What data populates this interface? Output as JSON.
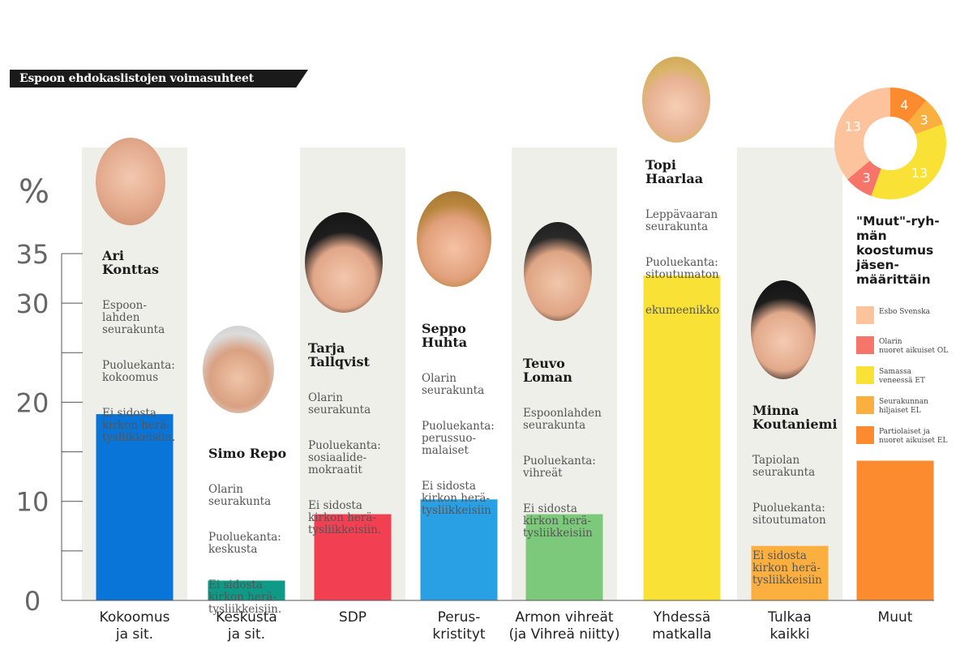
{
  "title": "Espoon ehdokaslistojen voimasuhteet",
  "chart_data": {
    "type": "bar",
    "ylabel": "%",
    "ylim": [
      0,
      35
    ],
    "yticks": [
      0,
      10,
      20,
      30,
      35
    ],
    "minor_yticks": [
      5,
      15,
      25
    ],
    "categories": [
      "Kokoomus\nja sit.",
      "Keskusta\nja sit.",
      "SDP",
      "Perus-\nkristityt",
      "Armon vihreät\n(ja Vihreä niitty)",
      "Yhdessä\nmatkalla",
      "Tulkaa\nkaikki",
      "Muut"
    ],
    "values": [
      18.8,
      2.0,
      8.7,
      10.2,
      8.7,
      32.8,
      5.5,
      14.1
    ],
    "colors": [
      "#0a75d8",
      "#0e9a86",
      "#f23f52",
      "#2aa0e4",
      "#7dc97b",
      "#f9e135",
      "#fbaf3f",
      "#fc8b2f"
    ],
    "shaded": [
      true,
      false,
      true,
      false,
      true,
      false,
      true,
      false
    ]
  },
  "candidates": [
    {
      "name": "Ari\nKonttas",
      "parish": "Espoon-\nlahden\nseurakunta",
      "party": "Puoluekanta:\nkokoomus",
      "note": "Ei sidosta\nkirkon herä-\ntysliikkeisiin."
    },
    {
      "name": "Simo Repo",
      "parish": "Olarin\nseurakunta",
      "party": "Puoluekanta:\nkeskusta",
      "note": "Ei sidosta\nkirkon herä-\ntysliikkeisiin."
    },
    {
      "name": "Tarja\nTallqvist",
      "parish": "Olarin\nseurakunta",
      "party": "Puoluekanta:\nsosiaalide-\nmokraatit",
      "note": "Ei sidosta\nkirkon herä-\ntysliikkeisiin."
    },
    {
      "name": "Seppo\nHuhta",
      "parish": "Olarin\nseurakunta",
      "party": "Puoluekanta:\nperussuo-\nmalaiset",
      "note": "Ei sidosta\nkirkon herä-\ntysliikkeisiin"
    },
    {
      "name": "Teuvo\nLoman",
      "parish": "Espoonlahden\nseurakunta",
      "party": "Puoluekanta:\nvihreät",
      "note": "Ei sidosta\nkirkon herä-\ntysliikkeisiin"
    },
    {
      "name": "Topi\nHaarlaa",
      "parish": "Leppävaaran\nseurakunta",
      "party": "Puoluekanta:\nsitoutumaton",
      "note": "ekumeenikko"
    },
    {
      "name": "Minna\nKoutaniemi",
      "parish": "Tapiolan\nseurakunta",
      "party": "Puoluekanta:\nsitoutumaton",
      "note": "Ei sidosta\nkirkon herä-\ntysliikkeisiin"
    }
  ],
  "muut": {
    "title": "\"Muut\"-ryh-\nmän\nkoostumus\njäsen-\nmäärittäin",
    "donut": {
      "type": "pie",
      "values": [
        4,
        3,
        13,
        3,
        13
      ],
      "labels": [
        "4",
        "3",
        "13",
        "3",
        "13"
      ],
      "colors": [
        "#fc8b2f",
        "#fbaf3f",
        "#f9e135",
        "#f6756a",
        "#fcc39c"
      ]
    },
    "legend": [
      {
        "label": "Esbo Svenska",
        "color": "#fcc39c"
      },
      {
        "label": "Olarin\nnuoret aikuiset OL",
        "color": "#f6756a"
      },
      {
        "label": "Samassa\nveneessä ET",
        "color": "#f9e135"
      },
      {
        "label": "Seurakunnan\nhiljaiset EL",
        "color": "#fbaf3f"
      },
      {
        "label": "Partiolaiset ja\nnuoret aikuiset EL",
        "color": "#fc8b2f"
      }
    ]
  }
}
